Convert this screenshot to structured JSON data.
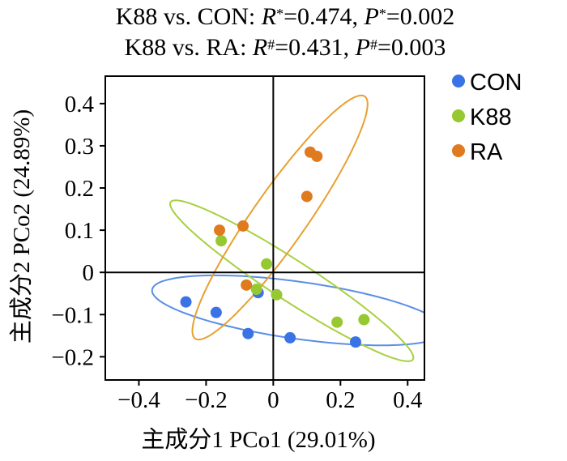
{
  "chart_data": {
    "type": "scatter",
    "title_lines": [
      [
        {
          "text": "K88 vs. CON: ",
          "italic": false,
          "sup": false
        },
        {
          "text": "R",
          "italic": true,
          "sup": false
        },
        {
          "text": "*",
          "italic": false,
          "sup": true
        },
        {
          "text": "=0.474, ",
          "italic": false,
          "sup": false
        },
        {
          "text": "P",
          "italic": true,
          "sup": false
        },
        {
          "text": "*",
          "italic": false,
          "sup": true
        },
        {
          "text": "=0.002",
          "italic": false,
          "sup": false
        }
      ],
      [
        {
          "text": "K88 vs. RA: ",
          "italic": false,
          "sup": false
        },
        {
          "text": "R",
          "italic": true,
          "sup": false
        },
        {
          "text": "#",
          "italic": false,
          "sup": true
        },
        {
          "text": "=0.431, ",
          "italic": false,
          "sup": false
        },
        {
          "text": "P",
          "italic": true,
          "sup": false
        },
        {
          "text": "#",
          "italic": false,
          "sup": true
        },
        {
          "text": "=0.003",
          "italic": false,
          "sup": false
        }
      ]
    ],
    "xlabel": "主成分1 PCo1 (29.01%)",
    "ylabel": "主成分2 PCo2 (24.89%)",
    "xlim": [
      -0.5,
      0.45
    ],
    "ylim": [
      -0.255,
      0.465
    ],
    "xticks": [
      -0.4,
      -0.2,
      0,
      0.2,
      0.4
    ],
    "xtick_labels": [
      "−0.4",
      "−0.2",
      "0",
      "0.2",
      "0.4"
    ],
    "yticks": [
      -0.2,
      -0.1,
      0,
      0.1,
      0.2,
      0.3,
      0.4
    ],
    "ytick_labels": [
      "−0.2",
      "−0.1",
      "0",
      "0.1",
      "0.2",
      "0.3",
      "0.4"
    ],
    "grid": false,
    "zero_lines": true,
    "legend_position": "right",
    "series": [
      {
        "name": "CON",
        "color": "#3a73e6",
        "ellipse_color": "#5b8ee6",
        "points": [
          {
            "x": -0.26,
            "y": -0.07
          },
          {
            "x": -0.17,
            "y": -0.095
          },
          {
            "x": -0.075,
            "y": -0.145
          },
          {
            "x": -0.045,
            "y": -0.048
          },
          {
            "x": 0.05,
            "y": -0.155
          },
          {
            "x": 0.245,
            "y": -0.165
          }
        ],
        "ellipse": {
          "cx": 0.075,
          "cy": -0.09,
          "rx": 0.44,
          "ry": 0.085,
          "angle_deg": -8
        }
      },
      {
        "name": "K88",
        "color": "#96c832",
        "ellipse_color": "#a8d040",
        "points": [
          {
            "x": -0.155,
            "y": 0.075
          },
          {
            "x": -0.02,
            "y": 0.02
          },
          {
            "x": -0.05,
            "y": -0.04
          },
          {
            "x": 0.01,
            "y": -0.053
          },
          {
            "x": 0.19,
            "y": -0.118
          },
          {
            "x": 0.27,
            "y": -0.112
          }
        ],
        "ellipse": {
          "cx": 0.055,
          "cy": -0.02,
          "rx": 0.43,
          "ry": 0.06,
          "angle_deg": -33
        }
      },
      {
        "name": "RA",
        "color": "#e07a1e",
        "ellipse_color": "#e8a030",
        "points": [
          {
            "x": -0.16,
            "y": 0.1
          },
          {
            "x": -0.09,
            "y": 0.11
          },
          {
            "x": -0.08,
            "y": -0.03
          },
          {
            "x": 0.1,
            "y": 0.18
          },
          {
            "x": 0.11,
            "y": 0.285
          },
          {
            "x": 0.13,
            "y": 0.275
          }
        ],
        "ellipse": {
          "cx": 0.02,
          "cy": 0.13,
          "rx": 0.44,
          "ry": 0.08,
          "angle_deg": 55
        }
      }
    ]
  }
}
